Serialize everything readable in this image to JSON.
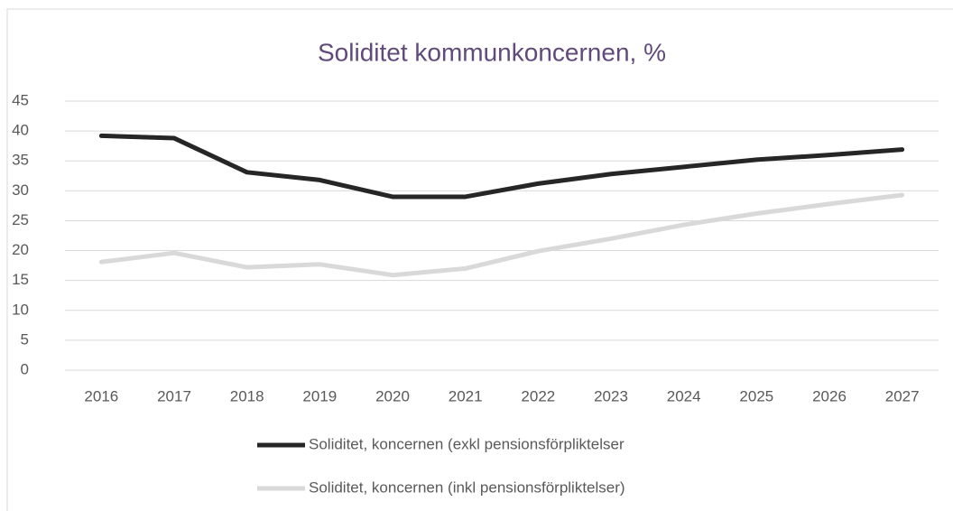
{
  "chart_data": {
    "type": "line",
    "title": "Soliditet kommunkoncernen, %",
    "categories": [
      "2016",
      "2017",
      "2018",
      "2019",
      "2020",
      "2021",
      "2022",
      "2023",
      "2024",
      "2025",
      "2026",
      "2027"
    ],
    "series": [
      {
        "name": "Soliditet, koncernen (exkl pensionsförpliktelser",
        "color": "#262626",
        "values": [
          39.2,
          38.8,
          33.1,
          31.8,
          29.0,
          29.0,
          31.2,
          32.8,
          34.0,
          35.2,
          36.0,
          36.9
        ]
      },
      {
        "name": "Soliditet, koncernen (inkl pensionsförpliktelser)",
        "color": "#d9d9d9",
        "values": [
          18.1,
          19.6,
          17.2,
          17.7,
          15.9,
          17.0,
          19.9,
          22.0,
          24.3,
          26.2,
          27.8,
          29.3
        ]
      }
    ],
    "ylim": [
      0,
      45
    ],
    "yticks": [
      0,
      5,
      10,
      15,
      20,
      25,
      30,
      35,
      40,
      45
    ],
    "grid": true,
    "legend": "bottom"
  }
}
